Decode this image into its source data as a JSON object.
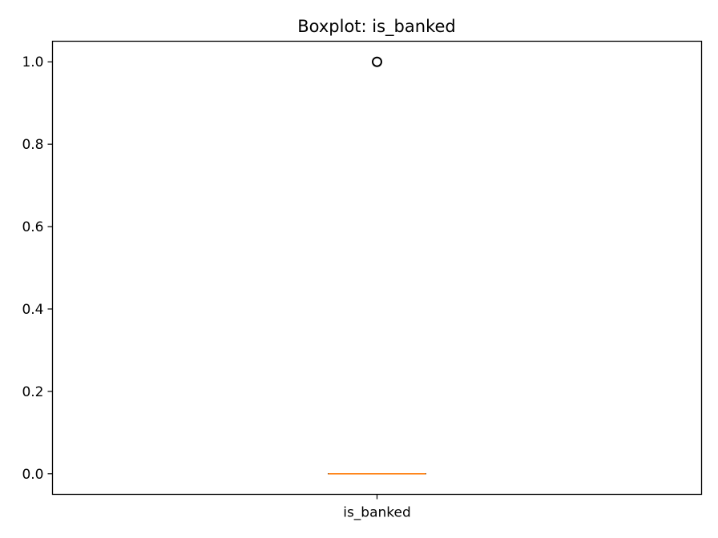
{
  "chart_data": {
    "type": "box",
    "title": "Boxplot: is_banked",
    "xlabel": "",
    "ylabel": "",
    "categories": [
      "is_banked"
    ],
    "series": [
      {
        "whislo": 0.0,
        "q1": 0.0,
        "med": 0.0,
        "q3": 0.0,
        "whishi": 0.0,
        "fliers": [
          1.0
        ]
      }
    ],
    "ylim": [
      -0.05,
      1.05
    ],
    "yticks": [
      0.0,
      0.2,
      0.4,
      0.6,
      0.8,
      1.0
    ],
    "ytick_labels": [
      "0.0",
      "0.2",
      "0.4",
      "0.6",
      "0.8",
      "1.0"
    ],
    "grid": false,
    "colors": {
      "median": "#ff7f0e",
      "box": "#000000",
      "flier_edge": "#000000"
    }
  }
}
